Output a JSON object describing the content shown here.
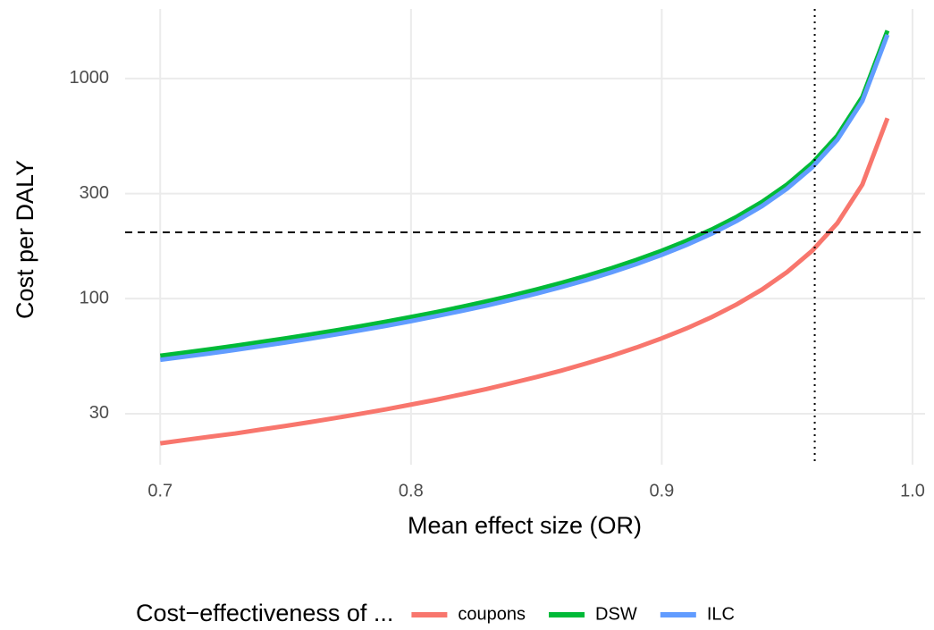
{
  "chart_data": {
    "type": "line",
    "x_label": "Mean effect size (OR)",
    "y_label": "Cost per DALY",
    "legend_title": "Cost−effectiveness of ...",
    "legend_position": "bottom",
    "log_y": true,
    "grid": true,
    "x": [
      0.7,
      0.71,
      0.72,
      0.73,
      0.74,
      0.75,
      0.76,
      0.77,
      0.78,
      0.79,
      0.8,
      0.81,
      0.82,
      0.83,
      0.84,
      0.85,
      0.86,
      0.87,
      0.88,
      0.89,
      0.9,
      0.91,
      0.92,
      0.93,
      0.94,
      0.95,
      0.96,
      0.97,
      0.98,
      0.99
    ],
    "series": [
      {
        "name": "coupons",
        "color": "#F8766D",
        "values": [
          22.0,
          22.8,
          23.6,
          24.4,
          25.4,
          26.4,
          27.5,
          28.7,
          30.0,
          31.4,
          33.0,
          34.7,
          36.7,
          38.8,
          41.3,
          44.0,
          47.1,
          50.8,
          55.0,
          60.0,
          66.0,
          73.3,
          82.5,
          94.3,
          110.0,
          132.0,
          165.0,
          220.0,
          330.0,
          660.0
        ]
      },
      {
        "name": "DSW",
        "color": "#00BA38",
        "values": [
          55.0,
          56.9,
          58.9,
          61.1,
          63.5,
          66.0,
          68.8,
          71.7,
          75.0,
          78.6,
          82.5,
          86.8,
          91.7,
          97.1,
          103.1,
          110.0,
          117.9,
          126.9,
          137.5,
          150.0,
          165.0,
          183.3,
          206.3,
          235.7,
          275.0,
          330.0,
          412.5,
          550.0,
          825.0,
          1650.0
        ]
      },
      {
        "name": "ILC",
        "color": "#619CFF",
        "values": [
          52.7,
          54.5,
          56.4,
          58.5,
          60.8,
          63.2,
          65.8,
          68.7,
          71.8,
          75.2,
          79.0,
          83.2,
          87.8,
          92.9,
          98.8,
          105.3,
          112.9,
          121.5,
          131.7,
          143.6,
          158.0,
          175.6,
          197.5,
          225.7,
          263.3,
          316.0,
          395.0,
          526.7,
          790.0,
          1580.0
        ]
      }
    ],
    "hline": 200,
    "vline": 0.961,
    "xlim": [
      0.686,
      1.005
    ],
    "xticks": [
      0.7,
      0.8,
      0.9,
      {
        "value": 1,
        "label": "1.0"
      }
    ],
    "ylim": [
      17.6,
      2070
    ],
    "yticks": [
      30,
      100,
      300,
      1000
    ]
  }
}
